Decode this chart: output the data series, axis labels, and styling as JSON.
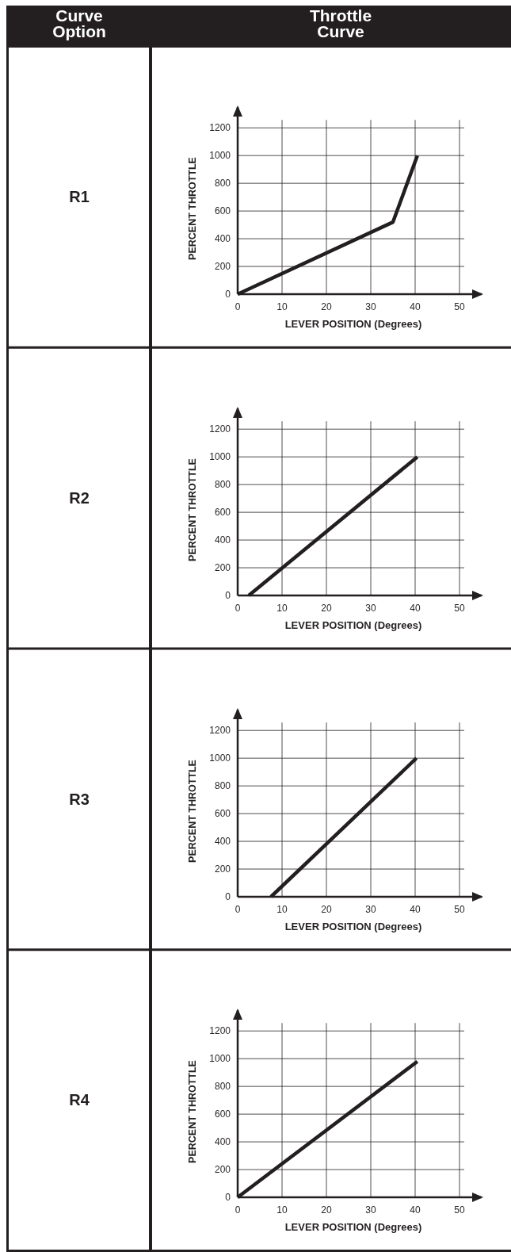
{
  "chart_data": [
    {
      "type": "other",
      "annotations": [
        "Curve Option",
        "Throttle Curve",
        "R1",
        "R2",
        "R3",
        "R4"
      ]
    },
    {
      "type": "line",
      "xlabel": "LEVER POSITION (Degrees)",
      "ylabel": "PERCENT THROTTLE",
      "x": [
        0,
        35,
        40.5
      ],
      "values": [
        0,
        520,
        1000
      ],
      "color": "#231f20",
      "xlim": [
        0,
        55
      ],
      "ylim": [
        0,
        1350
      ],
      "xticks": [
        0,
        10,
        20,
        30,
        40,
        50
      ],
      "yticks": [
        0,
        200,
        400,
        600,
        800,
        1000,
        1200
      ],
      "grid": true,
      "marker": "none",
      "line_style": "solid"
    },
    {
      "type": "line",
      "xlabel": "LEVER POSITION (Degrees)",
      "ylabel": "PERCENT THROTTLE",
      "x": [
        2.5,
        40.5
      ],
      "values": [
        0,
        1000
      ],
      "color": "#231f20",
      "xlim": [
        0,
        55
      ],
      "ylim": [
        0,
        1350
      ],
      "xticks": [
        0,
        10,
        20,
        30,
        40,
        50
      ],
      "yticks": [
        0,
        200,
        400,
        600,
        800,
        1000,
        1200
      ],
      "grid": true,
      "marker": "none",
      "line_style": "solid"
    },
    {
      "type": "line",
      "xlabel": "LEVER POSITION (Degrees)",
      "ylabel": "PERCENT THROTTLE",
      "x": [
        7.5,
        40.3
      ],
      "values": [
        0,
        1000
      ],
      "color": "#231f20",
      "xlim": [
        0,
        55
      ],
      "ylim": [
        0,
        1350
      ],
      "xticks": [
        0,
        10,
        20,
        30,
        40,
        50
      ],
      "yticks": [
        0,
        200,
        400,
        600,
        800,
        1000,
        1200
      ],
      "grid": true,
      "marker": "none",
      "line_style": "solid"
    },
    {
      "type": "line",
      "xlabel": "LEVER POSITION (Degrees)",
      "ylabel": "PERCENT THROTTLE",
      "x": [
        0,
        40.5
      ],
      "values": [
        0,
        980
      ],
      "color": "#231f20",
      "xlim": [
        0,
        55
      ],
      "ylim": [
        0,
        1350
      ],
      "xticks": [
        0,
        10,
        20,
        30,
        40,
        50
      ],
      "yticks": [
        0,
        200,
        400,
        600,
        800,
        1000,
        1200
      ],
      "grid": true,
      "marker": "none",
      "line_style": "solid"
    }
  ]
}
